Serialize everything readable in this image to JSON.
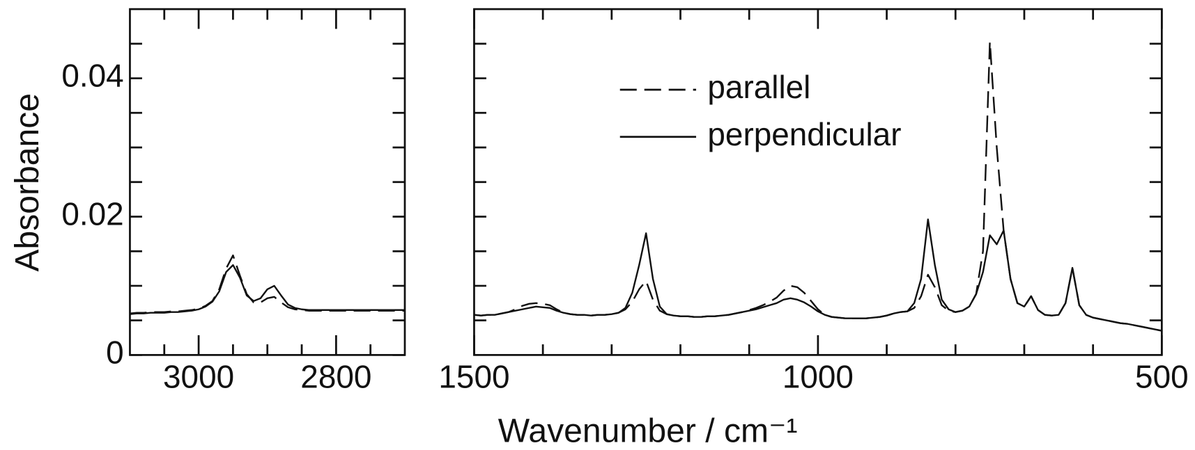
{
  "chart_data": [
    {
      "type": "line",
      "ylabel": "Absorbance",
      "xlim": [
        3100,
        2700
      ],
      "xticks": [
        3000,
        2800
      ],
      "xminorticks": [
        3050,
        2950,
        2900,
        2850,
        2750
      ],
      "ylim": [
        0,
        0.05
      ],
      "yticks": [
        0,
        0.02,
        0.04
      ],
      "yminorticks": [
        0.005,
        0.01,
        0.015,
        0.025,
        0.03,
        0.035,
        0.045
      ],
      "x": [
        3100,
        3090,
        3080,
        3070,
        3060,
        3050,
        3040,
        3030,
        3020,
        3010,
        3000,
        2990,
        2980,
        2970,
        2960,
        2950,
        2940,
        2930,
        2920,
        2910,
        2900,
        2890,
        2880,
        2870,
        2860,
        2850,
        2840,
        2830,
        2820,
        2810,
        2800,
        2790,
        2780,
        2770,
        2760,
        2750,
        2740,
        2730,
        2720,
        2710,
        2700
      ],
      "series": [
        {
          "name": "parallel",
          "color": "#111111",
          "linestyle": "dashed",
          "values": [
            0.006,
            0.0061,
            0.0061,
            0.0062,
            0.0062,
            0.0062,
            0.0063,
            0.0063,
            0.0064,
            0.0065,
            0.0067,
            0.0071,
            0.0078,
            0.0095,
            0.0125,
            0.0144,
            0.0115,
            0.0088,
            0.0076,
            0.0076,
            0.0082,
            0.0084,
            0.0076,
            0.0069,
            0.0066,
            0.0065,
            0.0064,
            0.0064,
            0.0064,
            0.0064,
            0.0064,
            0.0064,
            0.0064,
            0.0064,
            0.0064,
            0.0064,
            0.0064,
            0.0064,
            0.0064,
            0.0064,
            0.0064
          ]
        },
        {
          "name": "perpendicular",
          "color": "#111111",
          "linestyle": "solid",
          "values": [
            0.0059,
            0.006,
            0.006,
            0.0061,
            0.0061,
            0.0061,
            0.0062,
            0.0062,
            0.0063,
            0.0064,
            0.0066,
            0.007,
            0.0077,
            0.0092,
            0.012,
            0.013,
            0.0112,
            0.0086,
            0.0078,
            0.0082,
            0.0095,
            0.01,
            0.0086,
            0.0073,
            0.0068,
            0.0066,
            0.0065,
            0.0065,
            0.0065,
            0.0065,
            0.0065,
            0.0065,
            0.0065,
            0.0065,
            0.0065,
            0.0065,
            0.0065,
            0.0065,
            0.0065,
            0.0065,
            0.0065
          ]
        }
      ]
    },
    {
      "type": "line",
      "xlabel": "Wavenumber / cm⁻¹",
      "legend": "upper center",
      "xlim": [
        1500,
        500
      ],
      "xticks": [
        1500,
        1000,
        500
      ],
      "xminorticks": [
        1400,
        1300,
        1200,
        1100,
        900,
        800,
        700,
        600
      ],
      "ylim": [
        0,
        0.05
      ],
      "yminorticks": [
        0.005,
        0.01,
        0.015,
        0.02,
        0.025,
        0.03,
        0.035,
        0.04,
        0.045
      ],
      "x": [
        1500,
        1490,
        1480,
        1470,
        1460,
        1450,
        1440,
        1430,
        1420,
        1410,
        1400,
        1390,
        1380,
        1370,
        1360,
        1350,
        1340,
        1330,
        1320,
        1310,
        1300,
        1290,
        1280,
        1270,
        1260,
        1250,
        1240,
        1230,
        1220,
        1210,
        1200,
        1190,
        1180,
        1170,
        1160,
        1150,
        1140,
        1130,
        1120,
        1110,
        1100,
        1090,
        1080,
        1070,
        1060,
        1050,
        1040,
        1030,
        1020,
        1010,
        1000,
        990,
        980,
        970,
        960,
        950,
        940,
        930,
        920,
        910,
        900,
        890,
        880,
        870,
        860,
        850,
        840,
        830,
        820,
        810,
        800,
        790,
        780,
        770,
        760,
        750,
        740,
        730,
        720,
        710,
        700,
        690,
        680,
        670,
        660,
        650,
        640,
        630,
        620,
        610,
        600,
        590,
        580,
        570,
        560,
        550,
        540,
        530,
        520,
        510,
        500
      ],
      "series": [
        {
          "name": "parallel",
          "color": "#111111",
          "linestyle": "dashed",
          "values": [
            0.0058,
            0.0057,
            0.0058,
            0.0058,
            0.006,
            0.0062,
            0.0066,
            0.0071,
            0.0074,
            0.0075,
            0.0074,
            0.0072,
            0.0066,
            0.0061,
            0.0059,
            0.0058,
            0.0058,
            0.0057,
            0.0058,
            0.0058,
            0.0059,
            0.0061,
            0.0066,
            0.0077,
            0.0095,
            0.0107,
            0.008,
            0.0064,
            0.0059,
            0.0057,
            0.0056,
            0.0056,
            0.0055,
            0.0055,
            0.0056,
            0.0056,
            0.0057,
            0.0058,
            0.006,
            0.0062,
            0.0065,
            0.0068,
            0.0072,
            0.0077,
            0.0083,
            0.0093,
            0.01,
            0.0098,
            0.009,
            0.0078,
            0.0066,
            0.0058,
            0.0055,
            0.0054,
            0.0053,
            0.0053,
            0.0053,
            0.0053,
            0.0054,
            0.0055,
            0.0057,
            0.006,
            0.0062,
            0.0063,
            0.0068,
            0.0085,
            0.0116,
            0.0098,
            0.0072,
            0.0064,
            0.0062,
            0.0064,
            0.007,
            0.0088,
            0.015,
            0.0453,
            0.03,
            0.018,
            0.011,
            0.0075,
            0.007,
            0.0085,
            0.0065,
            0.0058,
            0.0057,
            0.0058,
            0.0075,
            0.0126,
            0.0072,
            0.0058,
            0.0054,
            0.0052,
            0.005,
            0.0048,
            0.0046,
            0.0045,
            0.0043,
            0.0041,
            0.0039,
            0.0037,
            0.0035
          ]
        },
        {
          "name": "perpendicular",
          "color": "#111111",
          "linestyle": "solid",
          "values": [
            0.0058,
            0.0057,
            0.0058,
            0.0058,
            0.006,
            0.0062,
            0.0064,
            0.0066,
            0.0068,
            0.007,
            0.0069,
            0.0068,
            0.0064,
            0.0061,
            0.0059,
            0.0058,
            0.0058,
            0.0057,
            0.0058,
            0.0058,
            0.0059,
            0.0061,
            0.0068,
            0.009,
            0.013,
            0.0176,
            0.011,
            0.007,
            0.0059,
            0.0057,
            0.0056,
            0.0056,
            0.0055,
            0.0055,
            0.0056,
            0.0056,
            0.0057,
            0.0058,
            0.006,
            0.0062,
            0.0064,
            0.0066,
            0.0069,
            0.0072,
            0.0075,
            0.008,
            0.0082,
            0.008,
            0.0076,
            0.007,
            0.0063,
            0.0058,
            0.0055,
            0.0054,
            0.0053,
            0.0053,
            0.0053,
            0.0053,
            0.0054,
            0.0055,
            0.0057,
            0.006,
            0.0062,
            0.0063,
            0.0075,
            0.011,
            0.0196,
            0.013,
            0.008,
            0.0066,
            0.0062,
            0.0064,
            0.007,
            0.0088,
            0.012,
            0.0173,
            0.016,
            0.018,
            0.011,
            0.0075,
            0.007,
            0.0085,
            0.0065,
            0.0058,
            0.0057,
            0.0058,
            0.0075,
            0.0126,
            0.0072,
            0.0058,
            0.0054,
            0.0052,
            0.005,
            0.0048,
            0.0046,
            0.0045,
            0.0043,
            0.0041,
            0.0039,
            0.0037,
            0.0035
          ]
        }
      ]
    }
  ]
}
